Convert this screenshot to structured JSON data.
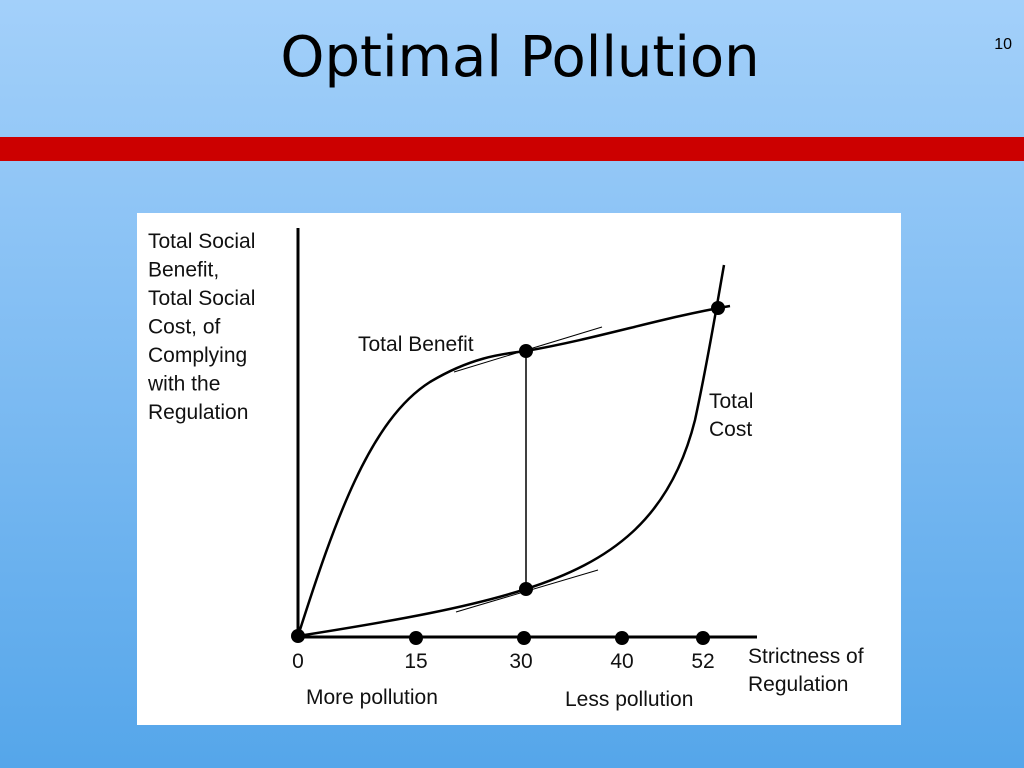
{
  "slide": {
    "title": "Optimal Pollution",
    "page_number": "10"
  },
  "diagram": {
    "y_axis_label": [
      "Total Social",
      "Benefit,",
      "Total Social",
      "Cost, of",
      "Complying",
      "with the",
      "Regulation"
    ],
    "x_axis_label": [
      "Strictness of",
      "Regulation"
    ],
    "x_ticks": [
      "0",
      "15",
      "30",
      "40",
      "52"
    ],
    "curve_labels": {
      "benefit": "Total Benefit",
      "cost": [
        "Total",
        "Cost"
      ]
    },
    "notes": {
      "left": "More pollution",
      "right": "Less pollution"
    }
  }
}
